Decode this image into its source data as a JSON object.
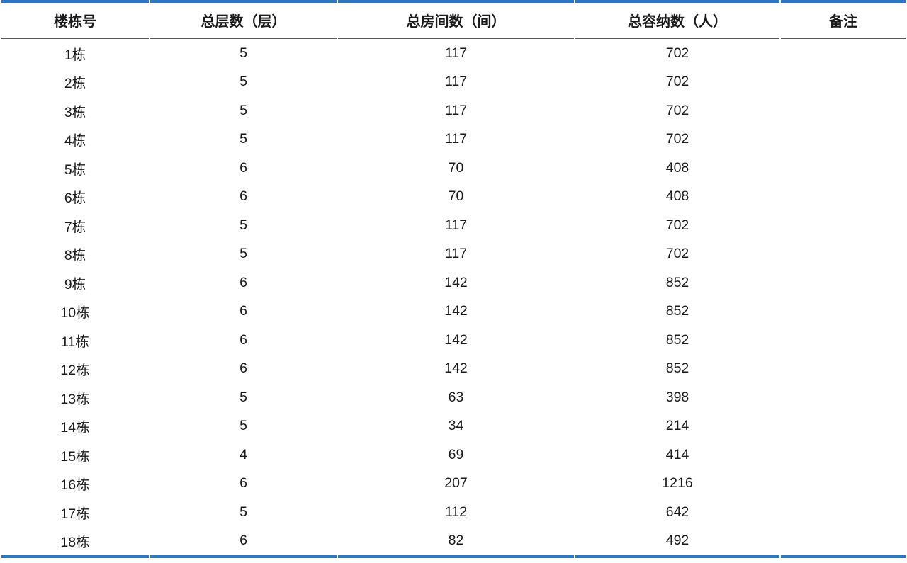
{
  "page": {
    "background_color": "#ffffff",
    "accent_color": "#2b79c2",
    "header_rule_color": "#595959"
  },
  "table": {
    "columns": [
      {
        "key": "building",
        "label": "楼栋号"
      },
      {
        "key": "floors",
        "label": "总层数（层）"
      },
      {
        "key": "rooms",
        "label": "总房间数（间）"
      },
      {
        "key": "capacity",
        "label": "总容纳数（人）"
      },
      {
        "key": "note",
        "label": "备注"
      }
    ],
    "rows": [
      {
        "building": "1栋",
        "floors": "5",
        "rooms": "117",
        "capacity": "702",
        "note": ""
      },
      {
        "building": "2栋",
        "floors": "5",
        "rooms": "117",
        "capacity": "702",
        "note": ""
      },
      {
        "building": "3栋",
        "floors": "5",
        "rooms": "117",
        "capacity": "702",
        "note": ""
      },
      {
        "building": "4栋",
        "floors": "5",
        "rooms": "117",
        "capacity": "702",
        "note": ""
      },
      {
        "building": "5栋",
        "floors": "6",
        "rooms": "70",
        "capacity": "408",
        "note": ""
      },
      {
        "building": "6栋",
        "floors": "6",
        "rooms": "70",
        "capacity": "408",
        "note": ""
      },
      {
        "building": "7栋",
        "floors": "5",
        "rooms": "117",
        "capacity": "702",
        "note": ""
      },
      {
        "building": "8栋",
        "floors": "5",
        "rooms": "117",
        "capacity": "702",
        "note": ""
      },
      {
        "building": "9栋",
        "floors": "6",
        "rooms": "142",
        "capacity": "852",
        "note": ""
      },
      {
        "building": "10栋",
        "floors": "6",
        "rooms": "142",
        "capacity": "852",
        "note": ""
      },
      {
        "building": "11栋",
        "floors": "6",
        "rooms": "142",
        "capacity": "852",
        "note": ""
      },
      {
        "building": "12栋",
        "floors": "6",
        "rooms": "142",
        "capacity": "852",
        "note": ""
      },
      {
        "building": "13栋",
        "floors": "5",
        "rooms": "63",
        "capacity": "398",
        "note": ""
      },
      {
        "building": "14栋",
        "floors": "5",
        "rooms": "34",
        "capacity": "214",
        "note": ""
      },
      {
        "building": "15栋",
        "floors": "4",
        "rooms": "69",
        "capacity": "414",
        "note": ""
      },
      {
        "building": "16栋",
        "floors": "6",
        "rooms": "207",
        "capacity": "1216",
        "note": ""
      },
      {
        "building": "17栋",
        "floors": "5",
        "rooms": "112",
        "capacity": "642",
        "note": ""
      },
      {
        "building": "18栋",
        "floors": "6",
        "rooms": "82",
        "capacity": "492",
        "note": ""
      }
    ]
  }
}
